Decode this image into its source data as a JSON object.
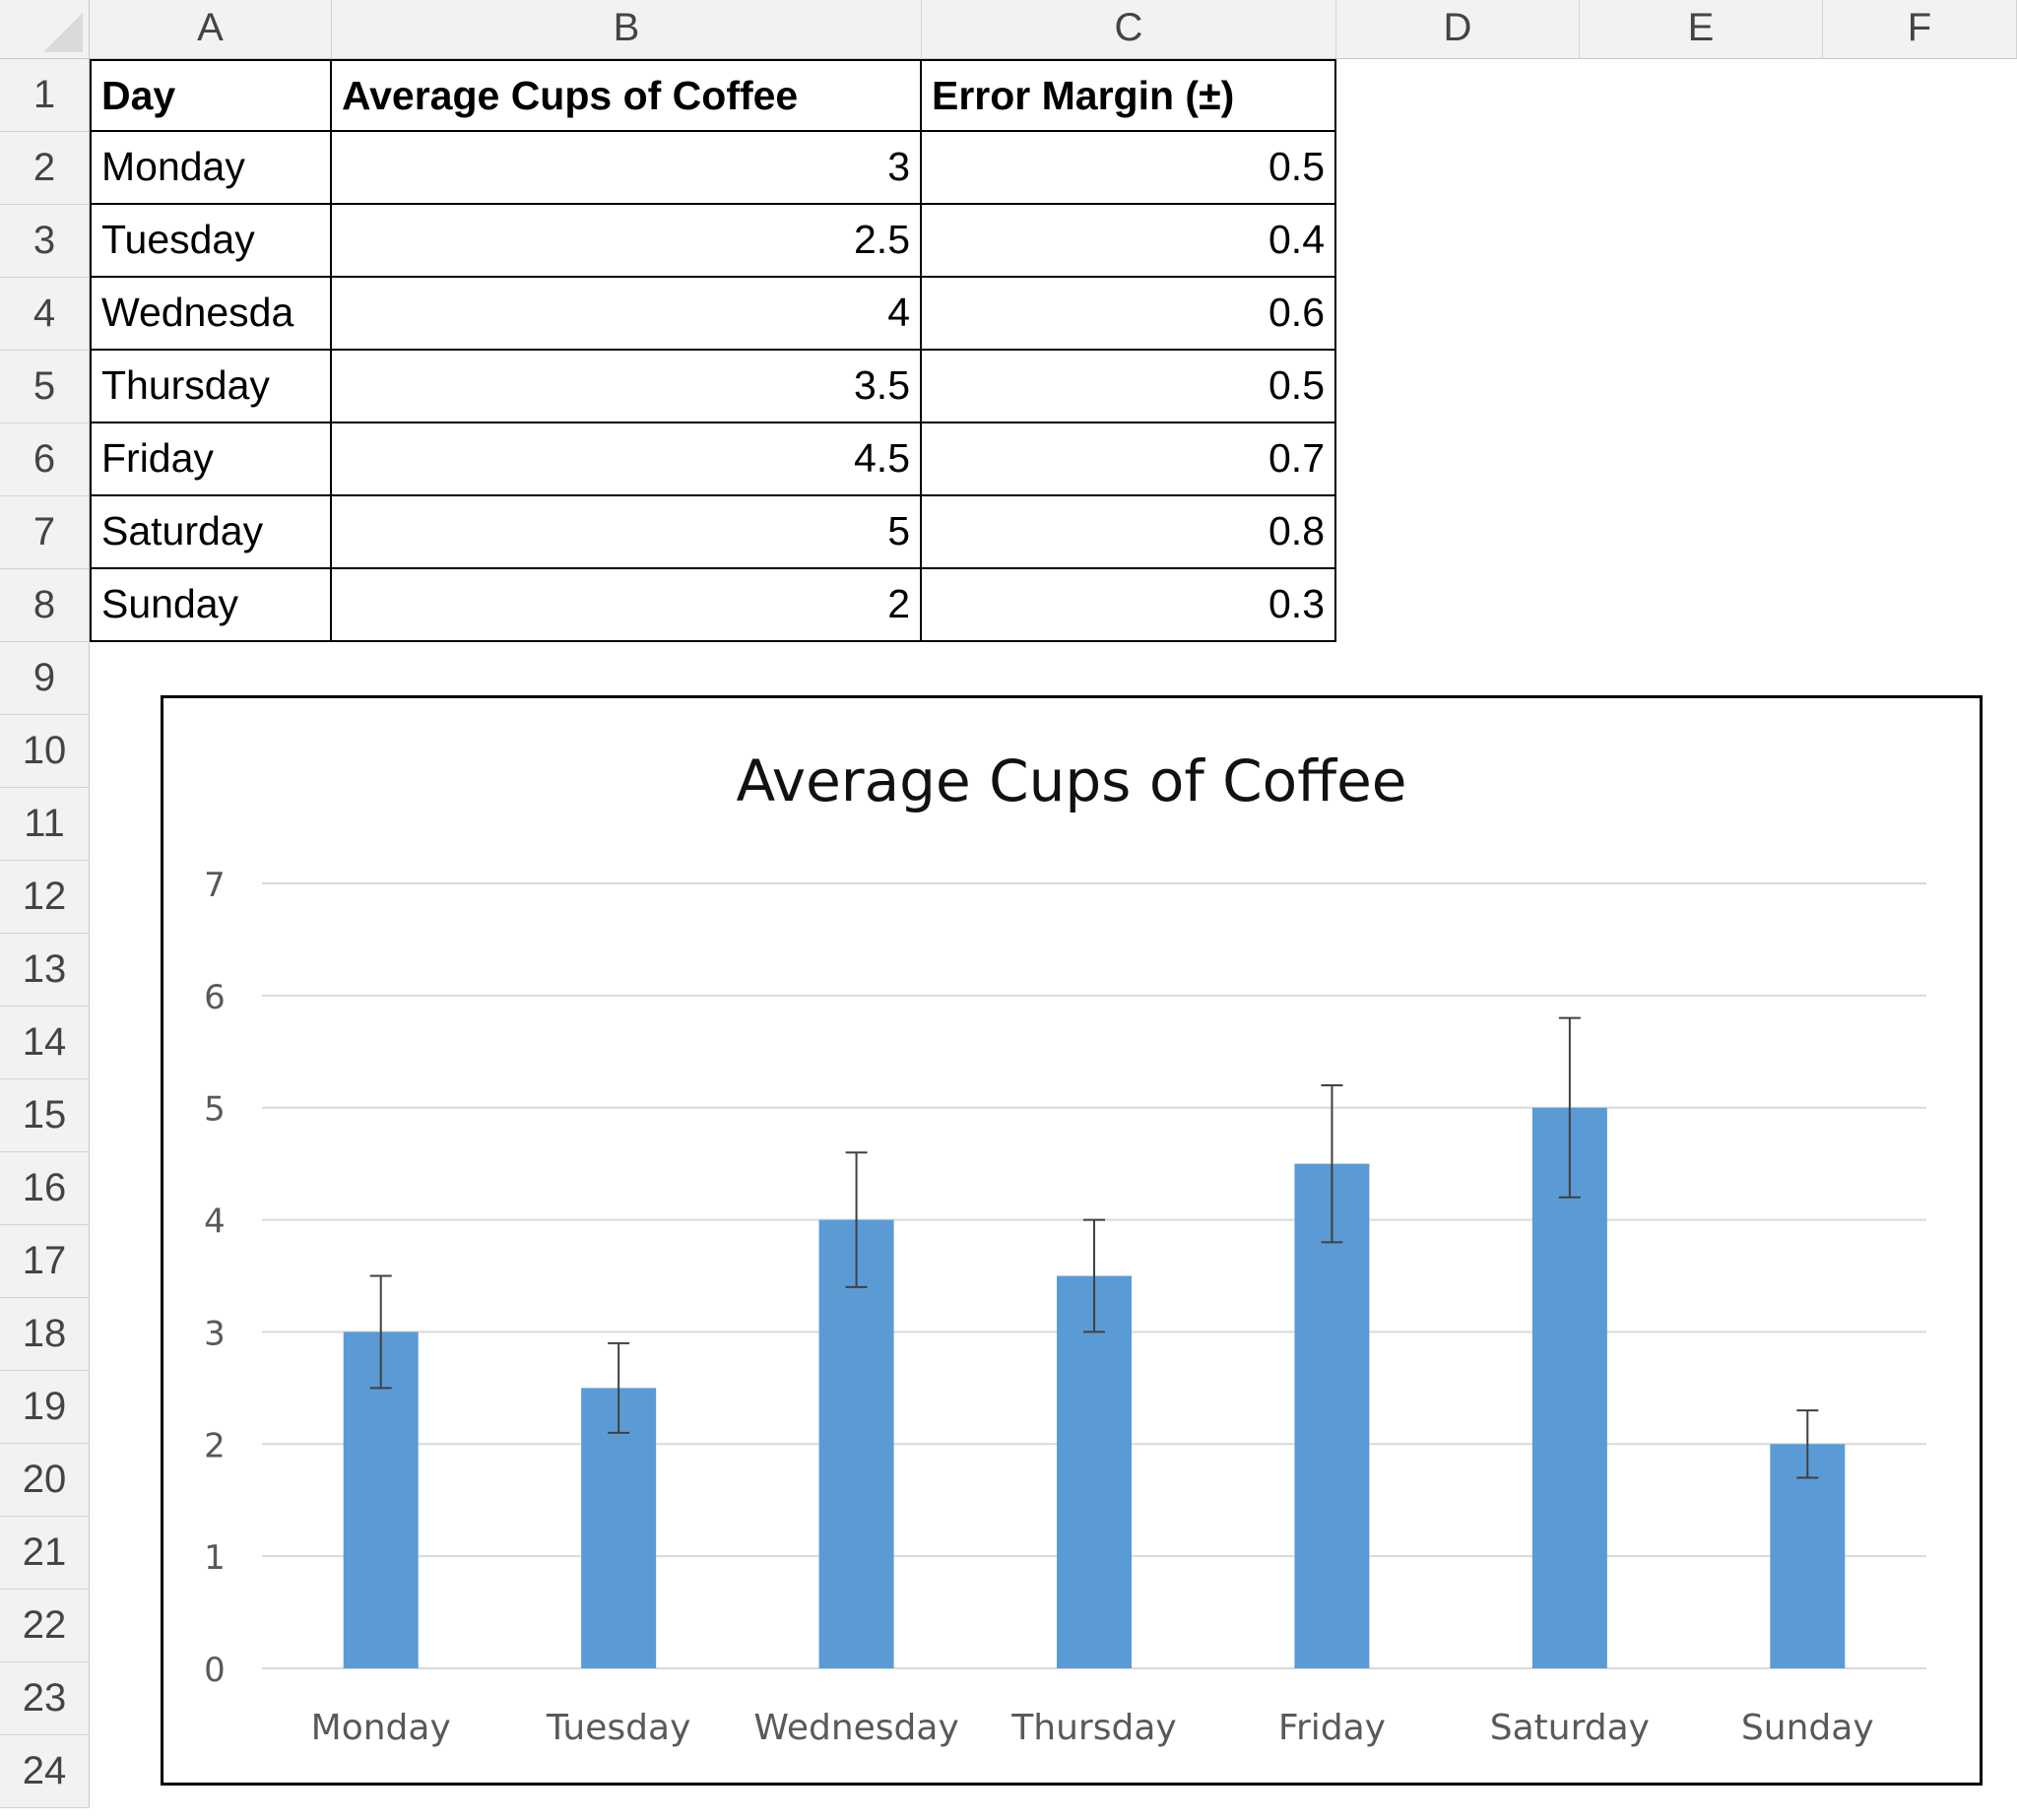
{
  "columns": [
    "A",
    "B",
    "C",
    "D",
    "E",
    "F"
  ],
  "rows": [
    "1",
    "2",
    "3",
    "4",
    "5",
    "6",
    "7",
    "8",
    "9",
    "10",
    "11",
    "12",
    "13",
    "14",
    "15",
    "16",
    "17",
    "18",
    "19",
    "20",
    "21",
    "22",
    "23",
    "24"
  ],
  "table": {
    "headers": [
      "Day",
      "Average Cups of Coffee",
      "Error Margin (±)"
    ],
    "rows": [
      [
        "Monday",
        "3",
        "0.5"
      ],
      [
        "Tuesday",
        "2.5",
        "0.4"
      ],
      [
        "Wednesda",
        "4",
        "0.6"
      ],
      [
        "Thursday",
        "3.5",
        "0.5"
      ],
      [
        "Friday",
        "4.5",
        "0.7"
      ],
      [
        "Saturday",
        "5",
        "0.8"
      ],
      [
        "Sunday",
        "2",
        "0.3"
      ]
    ]
  },
  "chart_data": {
    "type": "bar",
    "title": "Average Cups of Coffee",
    "categories": [
      "Monday",
      "Tuesday",
      "Wednesday",
      "Thursday",
      "Friday",
      "Saturday",
      "Sunday"
    ],
    "values": [
      3,
      2.5,
      4,
      3.5,
      4.5,
      5,
      2
    ],
    "error": [
      0.5,
      0.4,
      0.6,
      0.5,
      0.7,
      0.8,
      0.3
    ],
    "ylim": [
      0,
      7
    ],
    "yticks": [
      "0",
      "1",
      "2",
      "3",
      "4",
      "5",
      "6",
      "7"
    ],
    "grid": true,
    "legend": "none",
    "bar_color": "#5b9bd5",
    "grid_color": "#d9d9d9",
    "errorbar_color": "#404040"
  }
}
